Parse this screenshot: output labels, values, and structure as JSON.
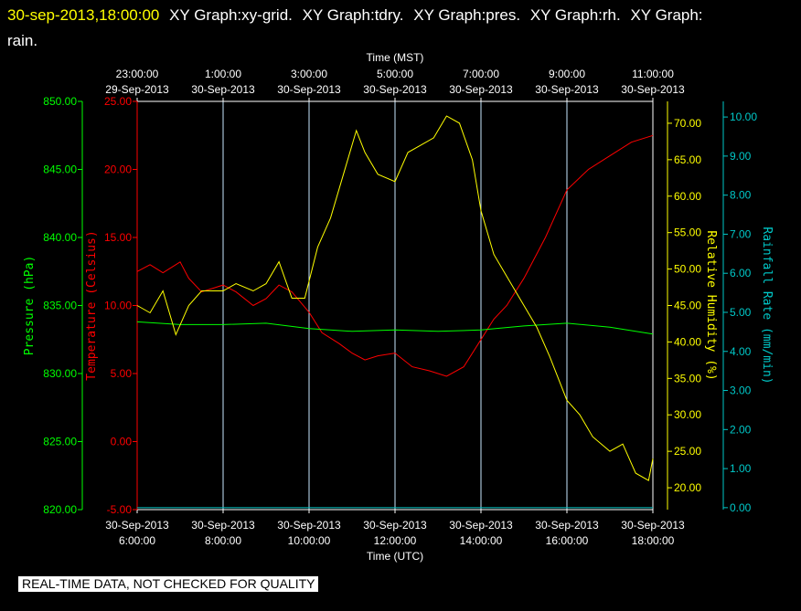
{
  "header": {
    "timestamp": "30-sep-2013,18:00:00",
    "graphs": [
      "XY Graph:xy-grid.",
      "XY Graph:tdry.",
      "XY Graph:pres.",
      "XY Graph:rh.",
      "XY Graph:"
    ],
    "wrap": "rain."
  },
  "footer": {
    "notice": "REAL-TIME DATA, NOT CHECKED FOR QUALITY"
  },
  "chart_data": {
    "type": "line",
    "top_axis": {
      "label": "Time (MST)",
      "ticks": [
        {
          "time": "23:00:00",
          "date": "29-Sep-2013"
        },
        {
          "time": "1:00:00",
          "date": "30-Sep-2013"
        },
        {
          "time": "3:00:00",
          "date": "30-Sep-2013"
        },
        {
          "time": "5:00:00",
          "date": "30-Sep-2013"
        },
        {
          "time": "7:00:00",
          "date": "30-Sep-2013"
        },
        {
          "time": "9:00:00",
          "date": "30-Sep-2013"
        },
        {
          "time": "11:00:00",
          "date": "30-Sep-2013"
        }
      ]
    },
    "bottom_axis": {
      "label": "Time (UTC)",
      "ticks": [
        {
          "date": "30-Sep-2013",
          "time": "6:00:00"
        },
        {
          "date": "30-Sep-2013",
          "time": "8:00:00"
        },
        {
          "date": "30-Sep-2013",
          "time": "10:00:00"
        },
        {
          "date": "30-Sep-2013",
          "time": "12:00:00"
        },
        {
          "date": "30-Sep-2013",
          "time": "14:00:00"
        },
        {
          "date": "30-Sep-2013",
          "time": "16:00:00"
        },
        {
          "date": "30-Sep-2013",
          "time": "18:00:00"
        }
      ],
      "range_hours_utc": [
        6,
        18
      ]
    },
    "axes": {
      "pressure": {
        "label": "Pressure (hPa)",
        "range": [
          820,
          850
        ],
        "ticks": [
          "820.00",
          "825.00",
          "830.00",
          "835.00",
          "840.00",
          "845.00",
          "850.00"
        ],
        "color": "#00ff00"
      },
      "temperature": {
        "label": "Temperature (Celsius)",
        "range": [
          -5,
          25
        ],
        "ticks": [
          "-5.00",
          "0.00",
          "5.00",
          "10.00",
          "15.00",
          "20.00",
          "25.00"
        ],
        "color": "#ff0000"
      },
      "humidity": {
        "label": "Relative Humidity (%)",
        "range": [
          17,
          73
        ],
        "ticks": [
          "20.00",
          "25.00",
          "30.00",
          "35.00",
          "40.00",
          "45.00",
          "50.00",
          "55.00",
          "60.00",
          "65.00",
          "70.00"
        ],
        "color": "#ffff00"
      },
      "rain": {
        "label": "Rainfall Rate (mm/min)",
        "range": [
          -0.05,
          10.4
        ],
        "ticks": [
          "0.00",
          "1.00",
          "2.00",
          "3.00",
          "4.00",
          "5.00",
          "6.00",
          "7.00",
          "8.00",
          "9.00",
          "10.00"
        ],
        "color": "#00c8c8"
      }
    },
    "grid": {
      "vertical_at_utc_hours": [
        8,
        10,
        12,
        14,
        16
      ],
      "color": "#c8e8ff"
    },
    "series": [
      {
        "name": "tdry",
        "axis": "temperature",
        "color": "#ff0000",
        "points": [
          [
            6,
            12.5
          ],
          [
            6.3,
            13
          ],
          [
            6.6,
            12.4
          ],
          [
            7,
            13.2
          ],
          [
            7.2,
            12
          ],
          [
            7.5,
            11
          ],
          [
            8,
            11.5
          ],
          [
            8.3,
            11
          ],
          [
            8.7,
            10
          ],
          [
            9,
            10.5
          ],
          [
            9.3,
            11.5
          ],
          [
            9.6,
            11
          ],
          [
            10,
            9.5
          ],
          [
            10.3,
            8
          ],
          [
            10.7,
            7.2
          ],
          [
            11,
            6.5
          ],
          [
            11.3,
            6
          ],
          [
            11.6,
            6.3
          ],
          [
            12,
            6.5
          ],
          [
            12.4,
            5.5
          ],
          [
            12.8,
            5.2
          ],
          [
            13.2,
            4.8
          ],
          [
            13.6,
            5.5
          ],
          [
            14,
            7.5
          ],
          [
            14.3,
            9
          ],
          [
            14.6,
            10
          ],
          [
            15,
            12
          ],
          [
            15.5,
            15
          ],
          [
            16,
            18.5
          ],
          [
            16.5,
            20
          ],
          [
            17,
            21
          ],
          [
            17.5,
            22
          ],
          [
            18,
            22.5
          ]
        ]
      },
      {
        "name": "pres",
        "axis": "pressure",
        "color": "#00ff00",
        "points": [
          [
            6,
            833.8
          ],
          [
            7,
            833.6
          ],
          [
            8,
            833.6
          ],
          [
            9,
            833.7
          ],
          [
            10,
            833.3
          ],
          [
            11,
            833.1
          ],
          [
            12,
            833.2
          ],
          [
            13,
            833.1
          ],
          [
            14,
            833.2
          ],
          [
            15,
            833.5
          ],
          [
            16,
            833.7
          ],
          [
            17,
            833.4
          ],
          [
            18,
            832.9
          ]
        ]
      },
      {
        "name": "rh",
        "axis": "humidity",
        "color": "#ffff00",
        "points": [
          [
            6,
            45
          ],
          [
            6.3,
            44
          ],
          [
            6.6,
            47
          ],
          [
            6.9,
            41
          ],
          [
            7.2,
            45
          ],
          [
            7.5,
            47
          ],
          [
            8,
            47
          ],
          [
            8.3,
            48
          ],
          [
            8.7,
            47
          ],
          [
            9,
            48
          ],
          [
            9.3,
            51
          ],
          [
            9.6,
            46
          ],
          [
            9.9,
            46
          ],
          [
            10.2,
            53
          ],
          [
            10.5,
            57
          ],
          [
            10.8,
            63
          ],
          [
            11.1,
            69
          ],
          [
            11.3,
            66
          ],
          [
            11.6,
            63
          ],
          [
            12,
            62
          ],
          [
            12.3,
            66
          ],
          [
            12.6,
            67
          ],
          [
            12.9,
            68
          ],
          [
            13.2,
            71
          ],
          [
            13.5,
            70
          ],
          [
            13.8,
            65
          ],
          [
            14,
            58
          ],
          [
            14.3,
            52
          ],
          [
            14.6,
            49
          ],
          [
            15,
            45
          ],
          [
            15.3,
            42
          ],
          [
            15.6,
            38
          ],
          [
            16,
            32
          ],
          [
            16.3,
            30
          ],
          [
            16.6,
            27
          ],
          [
            17,
            25
          ],
          [
            17.3,
            26
          ],
          [
            17.6,
            22
          ],
          [
            17.9,
            21
          ],
          [
            18,
            24
          ]
        ]
      },
      {
        "name": "rain",
        "axis": "rain",
        "color": "#00c8c8",
        "points": [
          [
            6,
            0
          ],
          [
            18,
            0
          ]
        ]
      }
    ]
  }
}
